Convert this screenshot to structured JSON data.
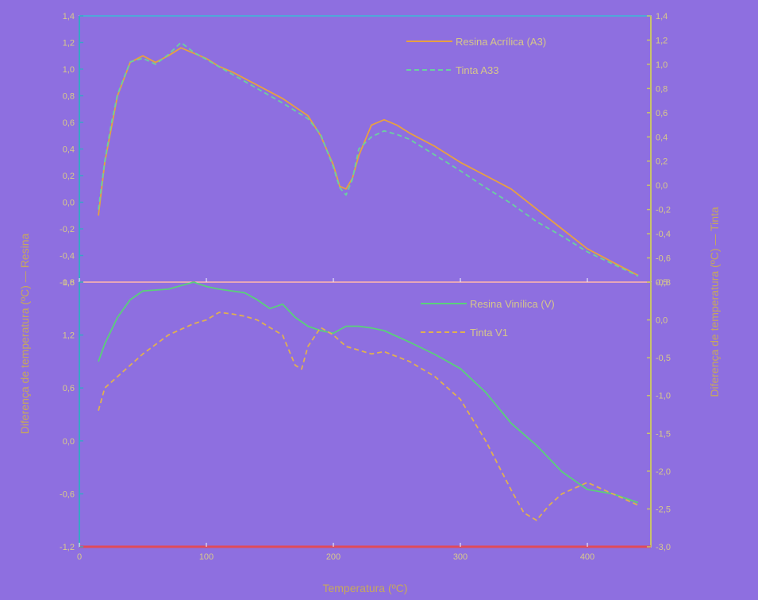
{
  "theme": {
    "background": "#8e6fe0",
    "panel_bg": "#8e6fe0",
    "frame": "#e8e3f7",
    "axis_left": "#38a6c6",
    "axis_right": "#c8c46a",
    "axis_bottom": "#e04a5a",
    "tick_text": "#d8c98a",
    "label_text": "#c7a85c"
  },
  "figure": {
    "xlabel": "Temperatura (ºC)",
    "ylabel_left": "Diferença de temperatura (ºC) — Resina",
    "ylabel_right": "Diferença de temperatura (ºC) — Tinta"
  },
  "chart_data": [
    {
      "type": "line",
      "panel": "top",
      "xlim": [
        0,
        450
      ],
      "ylim_left": [
        -0.6,
        1.4
      ],
      "yticks_left": [
        "-0,6",
        "-0,4",
        "-0,2",
        "0,0",
        "0,2",
        "0,4",
        "0,6",
        "0,8",
        "1,0",
        "1,2",
        "1,4"
      ],
      "ylim_right": [
        -0.8,
        1.4
      ],
      "yticks_right": [
        "-0,8",
        "-0,6",
        "-0,4",
        "-0,2",
        "0,0",
        "0,2",
        "0,4",
        "0,6",
        "0,8",
        "1,0",
        "1,2",
        "1,4"
      ],
      "legend_position": "top-right",
      "series": [
        {
          "name": "Resina Acrílica (A3)",
          "axis": "left",
          "style": "solid",
          "color": "#e8a040",
          "x": [
            15,
            20,
            25,
            30,
            40,
            50,
            60,
            70,
            80,
            90,
            100,
            110,
            120,
            140,
            160,
            180,
            190,
            200,
            205,
            210,
            215,
            220,
            230,
            240,
            250,
            260,
            280,
            300,
            320,
            340,
            360,
            380,
            400,
            420,
            440
          ],
          "y": [
            -0.1,
            0.3,
            0.55,
            0.8,
            1.05,
            1.1,
            1.05,
            1.1,
            1.16,
            1.12,
            1.08,
            1.02,
            0.98,
            0.88,
            0.78,
            0.65,
            0.5,
            0.28,
            0.12,
            0.1,
            0.18,
            0.35,
            0.58,
            0.62,
            0.58,
            0.52,
            0.42,
            0.3,
            0.2,
            0.1,
            -0.05,
            -0.2,
            -0.35,
            -0.45,
            -0.55
          ]
        },
        {
          "name": "Tinta A33",
          "axis": "right",
          "style": "dashed",
          "color": "#6ad0a0",
          "x": [
            15,
            20,
            25,
            30,
            40,
            50,
            60,
            70,
            80,
            90,
            100,
            110,
            120,
            140,
            160,
            180,
            190,
            200,
            205,
            210,
            215,
            220,
            230,
            240,
            250,
            260,
            280,
            300,
            320,
            340,
            360,
            380,
            400,
            420,
            440
          ],
          "y": [
            -0.2,
            0.2,
            0.5,
            0.75,
            1.02,
            1.05,
            1.0,
            1.08,
            1.18,
            1.1,
            1.04,
            0.98,
            0.92,
            0.8,
            0.68,
            0.55,
            0.42,
            0.15,
            -0.02,
            -0.08,
            0.05,
            0.3,
            0.4,
            0.45,
            0.42,
            0.38,
            0.25,
            0.12,
            -0.02,
            -0.15,
            -0.3,
            -0.42,
            -0.55,
            -0.65,
            -0.75
          ]
        }
      ]
    },
    {
      "type": "line",
      "panel": "bottom",
      "xlim": [
        0,
        450
      ],
      "xticks": [
        "0",
        "100",
        "200",
        "300",
        "400"
      ],
      "ylim_left": [
        -1.2,
        1.8
      ],
      "yticks_left": [
        "-1,2",
        "-0,6",
        "0,0",
        "0,6",
        "1,2",
        "1,8"
      ],
      "ylim_right": [
        -3.0,
        0.5
      ],
      "yticks_right": [
        "-3,0",
        "-2,5",
        "-2,0",
        "-1,5",
        "-1,0",
        "-0,5",
        "0,0",
        "0,5"
      ],
      "legend_position": "top-right",
      "series": [
        {
          "name": "Resina Vinílica (V)",
          "axis": "left",
          "style": "solid",
          "color": "#5ad07a",
          "x": [
            15,
            20,
            30,
            40,
            50,
            70,
            90,
            100,
            110,
            120,
            130,
            140,
            150,
            160,
            170,
            180,
            190,
            200,
            210,
            220,
            230,
            240,
            260,
            280,
            300,
            320,
            340,
            360,
            380,
            400,
            420,
            440
          ],
          "y": [
            0.9,
            1.1,
            1.4,
            1.6,
            1.7,
            1.72,
            1.8,
            1.75,
            1.72,
            1.7,
            1.68,
            1.6,
            1.5,
            1.55,
            1.4,
            1.3,
            1.25,
            1.22,
            1.3,
            1.3,
            1.28,
            1.25,
            1.12,
            0.98,
            0.82,
            0.55,
            0.2,
            -0.05,
            -0.35,
            -0.55,
            -0.6,
            -0.7
          ]
        },
        {
          "name": "Tinta V1",
          "axis": "right",
          "style": "dashed",
          "color": "#e0b050",
          "x": [
            15,
            20,
            30,
            40,
            50,
            70,
            90,
            100,
            110,
            120,
            130,
            140,
            150,
            160,
            170,
            175,
            180,
            190,
            200,
            210,
            220,
            230,
            240,
            260,
            280,
            300,
            320,
            340,
            350,
            360,
            370,
            380,
            400,
            420,
            440
          ],
          "y": [
            -1.2,
            -0.9,
            -0.75,
            -0.6,
            -0.45,
            -0.2,
            -0.05,
            0.0,
            0.1,
            0.08,
            0.05,
            0.0,
            -0.1,
            -0.2,
            -0.6,
            -0.65,
            -0.35,
            -0.1,
            -0.2,
            -0.35,
            -0.4,
            -0.45,
            -0.42,
            -0.55,
            -0.75,
            -1.05,
            -1.6,
            -2.25,
            -2.55,
            -2.65,
            -2.45,
            -2.3,
            -2.15,
            -2.3,
            -2.45
          ]
        }
      ]
    }
  ]
}
